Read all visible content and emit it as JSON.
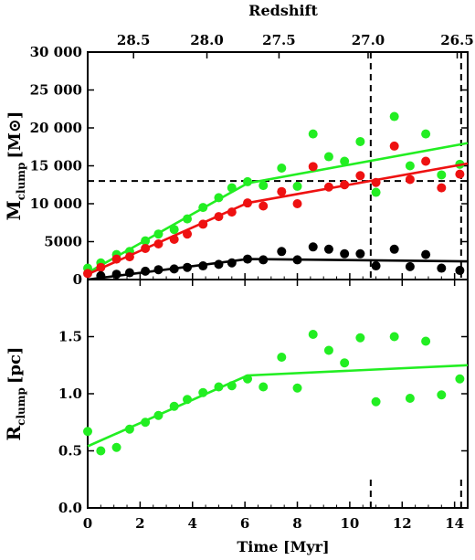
{
  "chart_data": {
    "type": "scatter",
    "shared_x": {
      "xlabel": "Time [Myr]",
      "xlim": [
        0,
        14.5
      ],
      "xticks": [
        0,
        2,
        4,
        6,
        8,
        10,
        12,
        14
      ],
      "top_axis": {
        "label": "Redshift",
        "ticks": [
          {
            "label": "28.5",
            "time": 1.75
          },
          {
            "label": "28.0",
            "time": 4.55
          },
          {
            "label": "27.5",
            "time": 7.3
          },
          {
            "label": "27.0",
            "time": 10.7
          },
          {
            "label": "26.5",
            "time": 14.1
          }
        ]
      }
    },
    "panels": [
      {
        "name": "mass",
        "ylabel": "M",
        "ylabel_sub": "clump",
        "ylabel_unit": "[M⊙]",
        "ylim": [
          0,
          30000
        ],
        "yticks": [
          {
            "value": 0,
            "label": "0"
          },
          {
            "value": 5000,
            "label": "5000"
          },
          {
            "value": 10000,
            "label": "10 000"
          },
          {
            "value": 15000,
            "label": "15 000"
          },
          {
            "value": 20000,
            "label": "20 000"
          },
          {
            "value": 25000,
            "label": "25 000"
          },
          {
            "value": 30000,
            "label": "30 000"
          }
        ],
        "hlines": [
          {
            "y": 13000,
            "style": "dashed"
          }
        ],
        "vlines": [
          {
            "x": 10.8,
            "style": "dashed"
          },
          {
            "x": 14.25,
            "style": "dashed"
          }
        ],
        "series": [
          {
            "color": "#22ee22",
            "x": [
              0,
              0.5,
              1.1,
              1.6,
              2.2,
              2.7,
              3.3,
              3.8,
              4.4,
              5.0,
              5.5,
              6.1,
              6.7,
              7.4,
              8.0,
              8.6,
              9.2,
              9.8,
              10.4,
              11.0,
              11.7,
              12.3,
              12.9,
              13.5,
              14.2
            ],
            "y": [
              1500,
              2200,
              3300,
              3700,
              5100,
              6000,
              6600,
              8000,
              9500,
              10800,
              12100,
              12900,
              12400,
              14700,
              12300,
              19200,
              16200,
              15600,
              18200,
              11500,
              21500,
              15000,
              19200,
              13800,
              15200
            ],
            "fit": {
              "x": [
                0,
                6.1,
                14.5
              ],
              "y": [
                900,
                12700,
                18000
              ]
            }
          },
          {
            "color": "#ee1111",
            "x": [
              0,
              0.5,
              1.1,
              1.6,
              2.2,
              2.7,
              3.3,
              3.8,
              4.4,
              5.0,
              5.5,
              6.1,
              6.7,
              7.4,
              8.0,
              8.6,
              9.2,
              9.8,
              10.4,
              11.0,
              11.7,
              12.3,
              12.9,
              13.5,
              14.2
            ],
            "y": [
              800,
              1600,
              2700,
              3000,
              4100,
              4700,
              5300,
              6000,
              7300,
              8300,
              8900,
              10100,
              9700,
              11600,
              10000,
              14900,
              12200,
              12500,
              13700,
              12800,
              17600,
              13200,
              15600,
              12100,
              13900
            ],
            "fit": {
              "x": [
                0,
                6.1,
                14.5
              ],
              "y": [
                700,
                10100,
                15300
              ]
            }
          },
          {
            "color": "#000000",
            "x": [
              0.5,
              1.1,
              1.6,
              2.2,
              2.7,
              3.3,
              3.8,
              4.4,
              5.0,
              5.5,
              6.1,
              6.7,
              7.4,
              8.0,
              8.6,
              9.2,
              9.8,
              10.4,
              11.0,
              11.7,
              12.3,
              12.9,
              13.5,
              14.2
            ],
            "y": [
              500,
              700,
              900,
              1100,
              1300,
              1400,
              1600,
              1800,
              2000,
              2200,
              2700,
              2600,
              3700,
              2600,
              4300,
              4000,
              3400,
              3400,
              1800,
              4000,
              1700,
              3300,
              1500,
              1200
            ],
            "fit": {
              "x": [
                0,
                6.1,
                14.5
              ],
              "y": [
                0,
                2700,
                2400
              ]
            }
          }
        ]
      },
      {
        "name": "radius",
        "ylabel": "R",
        "ylabel_sub": "clump",
        "ylabel_unit": "[pc]",
        "ylim": [
          0,
          2
        ],
        "yticks": [
          {
            "value": 0,
            "label": "0.0"
          },
          {
            "value": 0.5,
            "label": "0.5"
          },
          {
            "value": 1.0,
            "label": "1.0"
          },
          {
            "value": 1.5,
            "label": "1.5"
          }
        ],
        "vmarks": [
          {
            "x": 10.8,
            "from": 0,
            "to": 0.25
          },
          {
            "x": 14.25,
            "from": 0,
            "to": 0.25
          }
        ],
        "series": [
          {
            "color": "#22ee22",
            "x": [
              0,
              0.5,
              1.1,
              1.6,
              2.2,
              2.7,
              3.3,
              3.8,
              4.4,
              5.0,
              5.5,
              6.1,
              6.7,
              7.4,
              8.0,
              8.6,
              9.2,
              9.8,
              10.4,
              11.0,
              11.7,
              12.3,
              12.9,
              13.5,
              14.2
            ],
            "y": [
              0.67,
              0.5,
              0.53,
              0.69,
              0.75,
              0.81,
              0.89,
              0.95,
              1.01,
              1.06,
              1.07,
              1.13,
              1.06,
              1.32,
              1.05,
              1.52,
              1.38,
              1.27,
              1.49,
              0.93,
              1.5,
              0.96,
              1.46,
              0.99,
              1.13
            ],
            "fit": {
              "x": [
                0,
                6.1,
                14.5
              ],
              "y": [
                0.54,
                1.16,
                1.25
              ]
            }
          }
        ]
      }
    ]
  }
}
